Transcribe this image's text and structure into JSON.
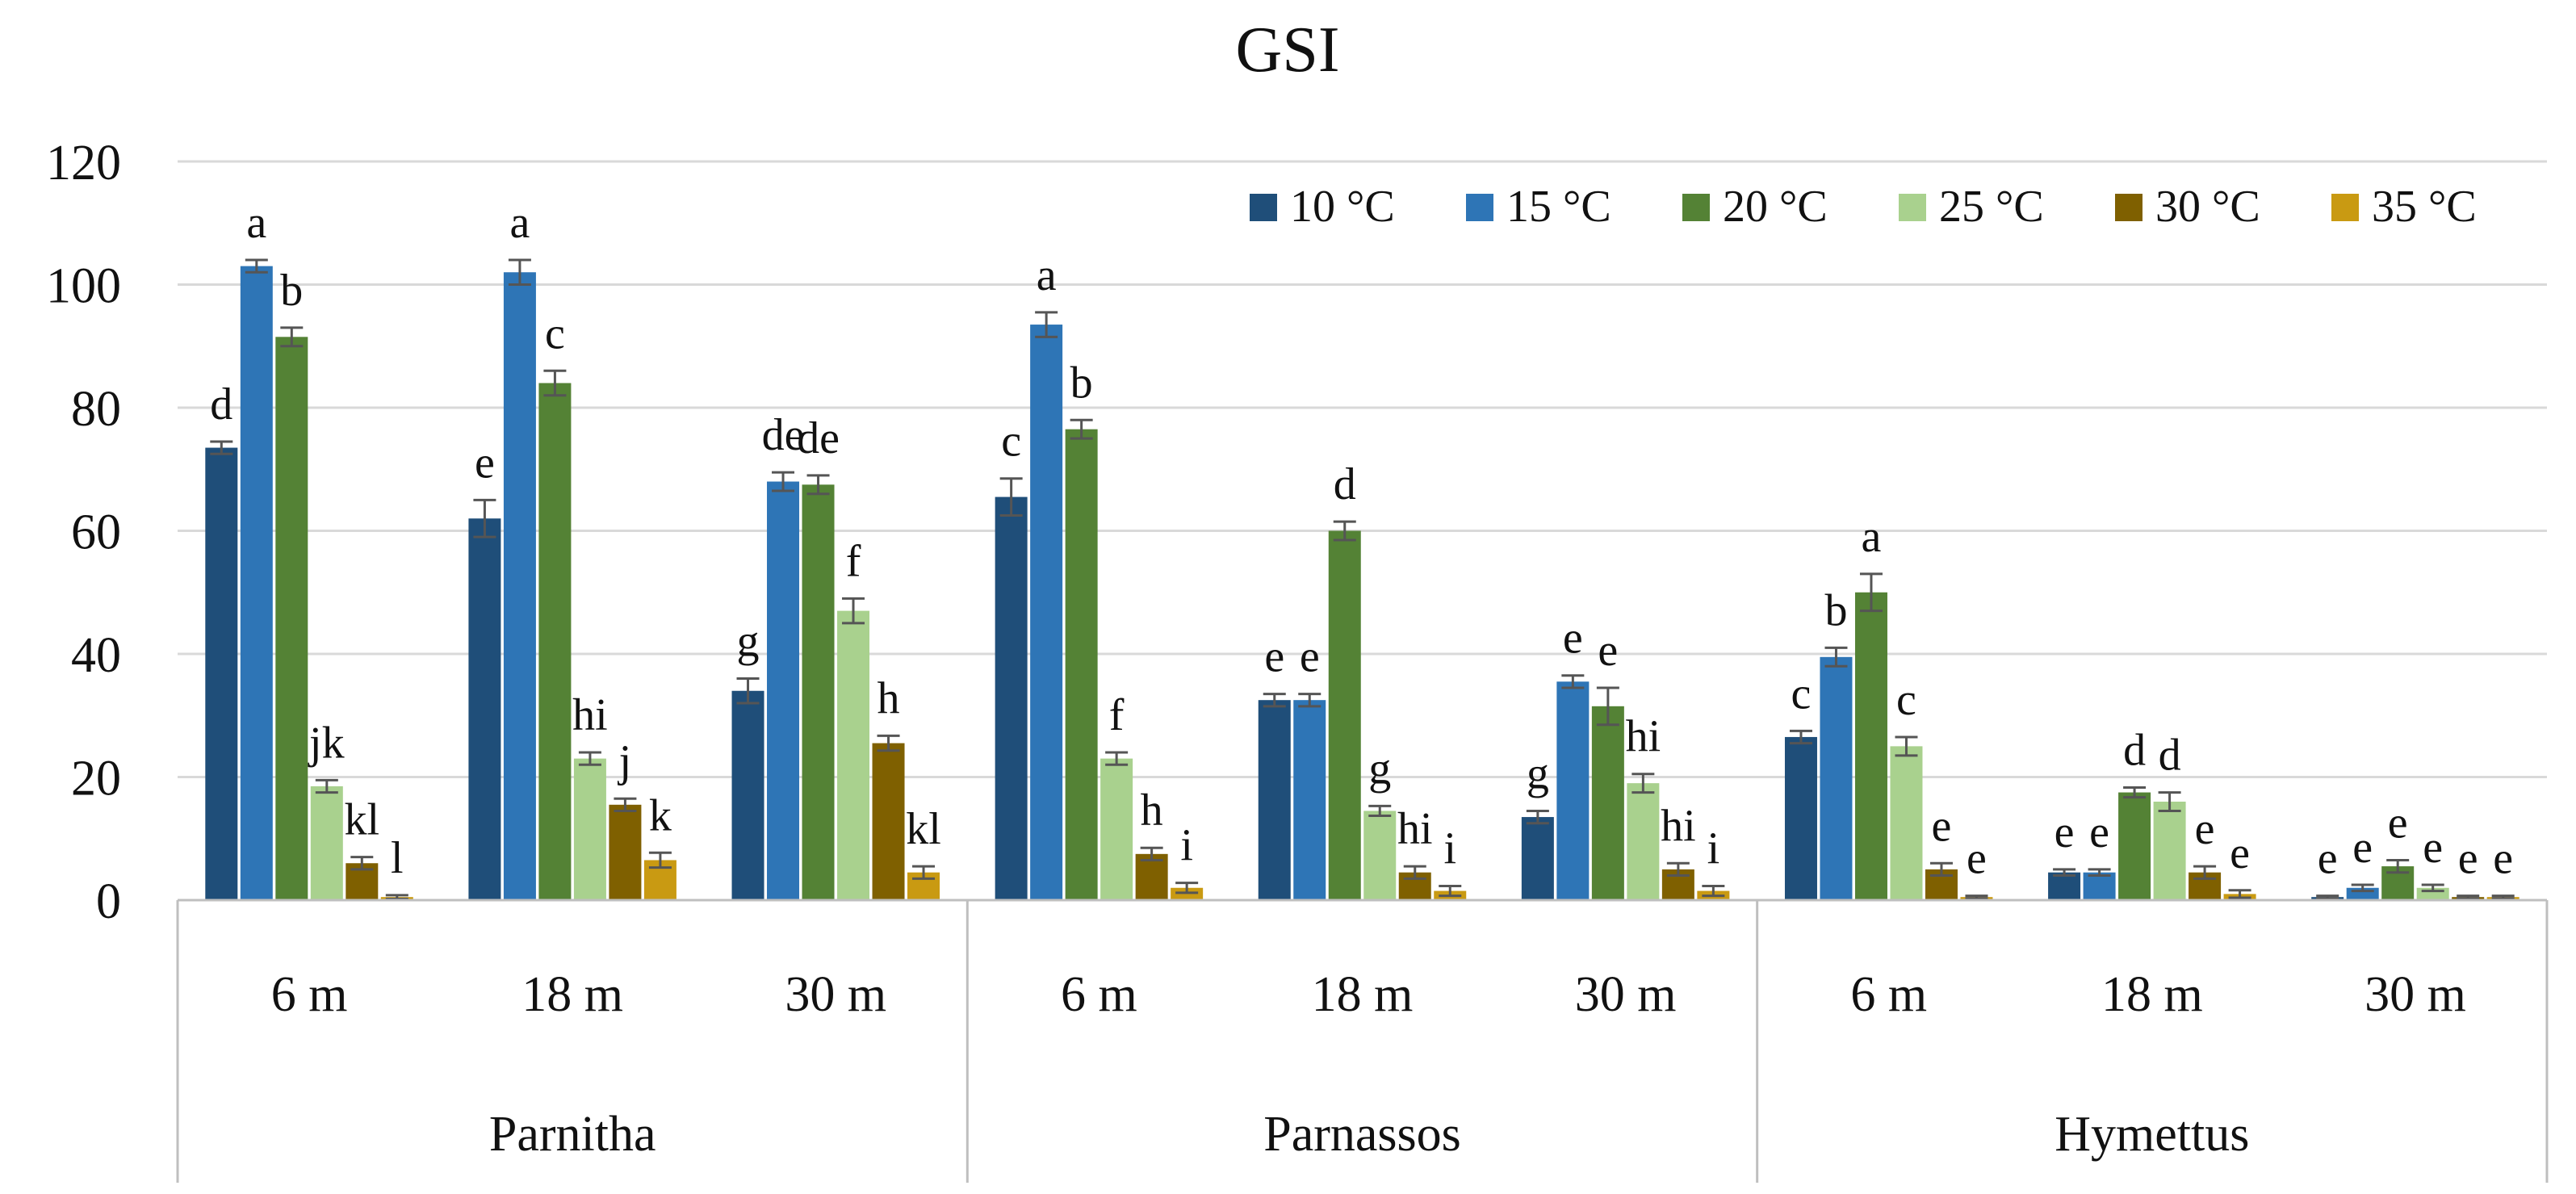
{
  "chart_data": {
    "type": "bar",
    "title": "GSI",
    "xlabel": "",
    "ylabel": "",
    "ylim": [
      0,
      120
    ],
    "yticks": [
      0,
      20,
      40,
      60,
      80,
      100,
      120
    ],
    "grid": true,
    "legend_position": "top-right",
    "groups": [
      "Parnitha",
      "Parnassos",
      "Hymettus"
    ],
    "subgroups": [
      "6 m",
      "18 m",
      "30 m"
    ],
    "categories": [
      "6 m",
      "18 m",
      "30 m",
      "6 m",
      "18 m",
      "30 m",
      "6 m",
      "18 m",
      "30 m"
    ],
    "series": [
      {
        "name": "10 °C",
        "color": "#1F4E79",
        "values": [
          73.5,
          62,
          34,
          65.5,
          32.5,
          13.5,
          26.5,
          4.5,
          0.5
        ],
        "errors": [
          1,
          3,
          2,
          3,
          1,
          1,
          1,
          0.5,
          0.2
        ],
        "letters": [
          "d",
          "e",
          "g",
          "c",
          "e",
          "g",
          "c",
          "e",
          "e"
        ]
      },
      {
        "name": "15 °C",
        "color": "#2E75B6",
        "values": [
          103,
          102,
          68,
          93.5,
          32.5,
          35.5,
          39.5,
          4.5,
          2
        ],
        "errors": [
          1,
          2,
          1.5,
          2,
          1,
          1,
          1.5,
          0.5,
          0.5
        ],
        "letters": [
          "a",
          "a",
          "de",
          "a",
          "e",
          "e",
          "b",
          "e",
          "e"
        ]
      },
      {
        "name": "20 °C",
        "color": "#548235",
        "values": [
          91.5,
          84,
          67.5,
          76.5,
          60,
          31.5,
          50,
          17.5,
          5.5
        ],
        "errors": [
          1.5,
          2,
          1.5,
          1.5,
          1.5,
          3,
          3,
          0.8,
          1
        ],
        "letters": [
          "b",
          "c",
          "de",
          "b",
          "d",
          "e",
          "a",
          "d",
          "e"
        ]
      },
      {
        "name": "25 °C",
        "color": "#A9D18E",
        "values": [
          18.5,
          23,
          47,
          23,
          14.5,
          19,
          25,
          16,
          2
        ],
        "errors": [
          1,
          1,
          2,
          1,
          0.8,
          1.5,
          1.5,
          1.5,
          0.5
        ],
        "letters": [
          "jk",
          "hi",
          "f",
          "f",
          "g",
          "hi",
          "c",
          "d",
          "e"
        ]
      },
      {
        "name": "30 °C",
        "color": "#7F6000",
        "values": [
          6,
          15.5,
          25.5,
          7.5,
          4.5,
          5,
          5,
          4.5,
          0.5
        ],
        "errors": [
          1,
          1,
          1.2,
          1,
          1,
          1,
          1,
          1,
          0.2
        ],
        "letters": [
          "kl",
          "j",
          "h",
          "h",
          "hi",
          "hi",
          "e",
          "e",
          "e"
        ]
      },
      {
        "name": "35 °C",
        "color": "#C99A12",
        "values": [
          0.5,
          6.5,
          4.5,
          2,
          1.5,
          1.5,
          0.5,
          1,
          0.5
        ],
        "errors": [
          0.3,
          1.2,
          1,
          0.8,
          0.8,
          0.8,
          0.2,
          0.6,
          0.2
        ],
        "letters": [
          "l",
          "k",
          "kl",
          "i",
          "i",
          "i",
          "e",
          "e",
          "e"
        ]
      }
    ]
  }
}
